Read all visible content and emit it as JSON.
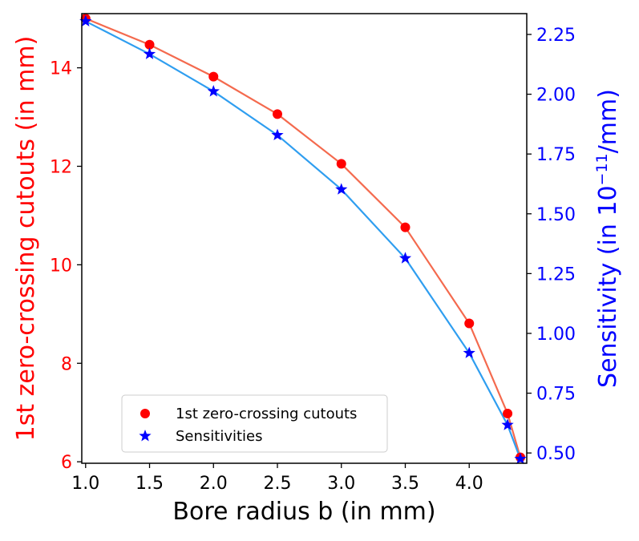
{
  "chart_data": {
    "type": "line",
    "x": [
      1.0,
      1.5,
      2.0,
      2.5,
      3.0,
      3.5,
      4.0,
      4.3,
      4.4
    ],
    "xlabel": "Bore radius b (in mm)",
    "xlim": [
      0.97,
      4.45
    ],
    "xticks": [
      1.0,
      1.5,
      2.0,
      2.5,
      3.0,
      3.5,
      4.0
    ],
    "xtick_labels": [
      "1.0",
      "1.5",
      "2.0",
      "2.5",
      "3.0",
      "3.5",
      "4.0"
    ],
    "y_left": {
      "label": "1st zero-crossing cutouts (in mm)",
      "color": "#ff0000",
      "lim": [
        5.97,
        15.1
      ],
      "ticks": [
        6,
        8,
        10,
        12,
        14
      ],
      "tick_labels": [
        "6",
        "8",
        "10",
        "12",
        "14"
      ]
    },
    "y_right": {
      "label_main": "Sensitivity (in 10",
      "label_sup": "−11",
      "label_end": "/mm)",
      "color": "#0000ff",
      "lim": [
        0.457,
        2.337
      ],
      "ticks": [
        0.5,
        0.75,
        1.0,
        1.25,
        1.5,
        1.75,
        2.0,
        2.25
      ],
      "tick_labels": [
        "0.50",
        "0.75",
        "1.00",
        "1.25",
        "1.50",
        "1.75",
        "2.00",
        "2.25"
      ]
    },
    "series": [
      {
        "name": "1st zero-crossing cutouts",
        "axis": "left",
        "marker": "circle",
        "marker_color": "#ff0000",
        "line_color": "#f46a4e",
        "values": [
          15.0,
          14.47,
          13.82,
          13.06,
          12.05,
          10.76,
          8.81,
          6.98,
          6.09
        ]
      },
      {
        "name": "Sensitivities",
        "axis": "right",
        "marker": "star",
        "marker_color": "#0000ff",
        "line_color": "#2f9ef0",
        "values": [
          2.305,
          2.168,
          2.012,
          1.829,
          1.602,
          1.314,
          0.918,
          0.617,
          0.475
        ]
      }
    ],
    "legend": {
      "position": "lower-left",
      "entries": [
        "1st zero-crossing cutouts",
        "Sensitivities"
      ]
    },
    "grid": false
  }
}
